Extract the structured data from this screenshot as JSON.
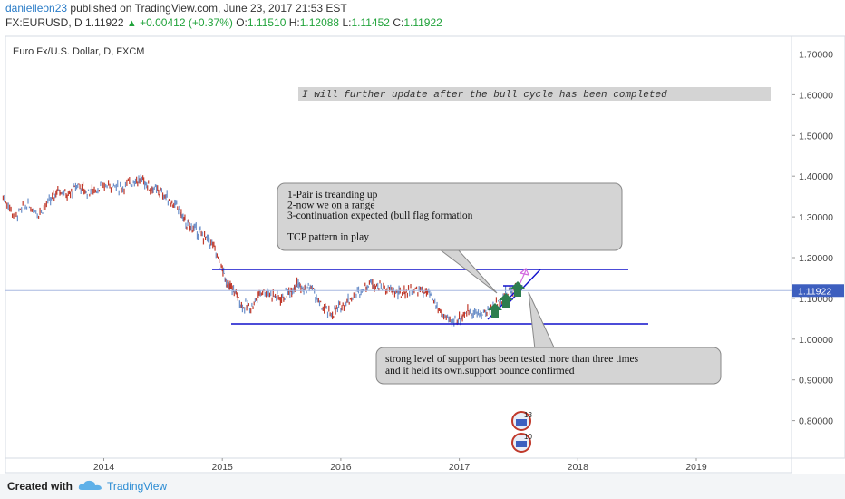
{
  "header": {
    "user": "danielleon23",
    "published": " published on TradingView.com, June 23, 2017 21:53 EST",
    "symbol": "FX:EURUSD, D",
    "last": "1.11922",
    "up_glyph": "▲",
    "change": "+0.00412 (+0.37%)",
    "o_label": "O:",
    "o_val": "1.11510",
    "h_label": "H:",
    "h_val": "1.12088",
    "l_label": "L:",
    "l_val": "1.11452",
    "c_label": "C:",
    "c_val": "1.11922"
  },
  "footer": {
    "created": "Created with",
    "brand": "TradingView",
    "logo_icon": "tradingview-cloud-icon"
  },
  "chart_data": {
    "type": "line",
    "title": "Euro Fx/U.S. Dollar, D, FXCM",
    "ylim": [
      0.7,
      1.75
    ],
    "y_ticks": [
      "1.70000",
      "1.60000",
      "1.50000",
      "1.40000",
      "1.30000",
      "1.20000",
      "1.10000",
      "1.00000",
      "0.90000",
      "0.80000"
    ],
    "y_tick_values": [
      1.7,
      1.6,
      1.5,
      1.4,
      1.3,
      1.2,
      1.1,
      1.0,
      0.9,
      0.8
    ],
    "x_ticks": [
      "2014",
      "2015",
      "2016",
      "2017",
      "2018",
      "2019"
    ],
    "x_tick_values": [
      2014,
      2015,
      2016,
      2017,
      2018,
      2019
    ],
    "xlim": [
      2013.15,
      2019.75
    ],
    "last_price": 1.11922,
    "last_price_label": "1.11922",
    "colors": {
      "up": "#6b8fc9",
      "down": "#c0392b",
      "trendline": "#1111cc",
      "price_line": "#a8b8e0",
      "arrow": "#2e7d4f",
      "label_bg": "#3d5fbf"
    },
    "series": [
      {
        "points": [
          [
            2013.15,
            1.35
          ],
          [
            2013.25,
            1.3
          ],
          [
            2013.35,
            1.33
          ],
          [
            2013.45,
            1.31
          ],
          [
            2013.55,
            1.34
          ],
          [
            2013.62,
            1.37
          ],
          [
            2013.7,
            1.35
          ],
          [
            2013.78,
            1.38
          ],
          [
            2013.86,
            1.36
          ],
          [
            2013.95,
            1.37
          ],
          [
            2014.05,
            1.38
          ],
          [
            2014.15,
            1.37
          ],
          [
            2014.25,
            1.39
          ],
          [
            2014.33,
            1.39
          ],
          [
            2014.4,
            1.37
          ],
          [
            2014.48,
            1.36
          ],
          [
            2014.56,
            1.34
          ],
          [
            2014.63,
            1.32
          ],
          [
            2014.7,
            1.28
          ],
          [
            2014.77,
            1.27
          ],
          [
            2014.85,
            1.25
          ],
          [
            2014.92,
            1.23
          ],
          [
            2015.0,
            1.17
          ],
          [
            2015.05,
            1.13
          ],
          [
            2015.1,
            1.12
          ],
          [
            2015.17,
            1.08
          ],
          [
            2015.25,
            1.08
          ],
          [
            2015.33,
            1.12
          ],
          [
            2015.42,
            1.11
          ],
          [
            2015.5,
            1.1
          ],
          [
            2015.58,
            1.12
          ],
          [
            2015.63,
            1.14
          ],
          [
            2015.68,
            1.12
          ],
          [
            2015.75,
            1.13
          ],
          [
            2015.83,
            1.08
          ],
          [
            2015.92,
            1.06
          ],
          [
            2016.0,
            1.08
          ],
          [
            2016.08,
            1.1
          ],
          [
            2016.17,
            1.12
          ],
          [
            2016.25,
            1.14
          ],
          [
            2016.33,
            1.13
          ],
          [
            2016.42,
            1.12
          ],
          [
            2016.5,
            1.11
          ],
          [
            2016.58,
            1.12
          ],
          [
            2016.67,
            1.12
          ],
          [
            2016.75,
            1.11
          ],
          [
            2016.83,
            1.07
          ],
          [
            2016.92,
            1.04
          ],
          [
            2017.0,
            1.05
          ],
          [
            2017.08,
            1.07
          ],
          [
            2017.17,
            1.06
          ],
          [
            2017.25,
            1.07
          ],
          [
            2017.33,
            1.09
          ],
          [
            2017.42,
            1.12
          ],
          [
            2017.48,
            1.12
          ]
        ]
      }
    ],
    "annotations": [
      {
        "text_lines": [
          "1-Pair is treanding up",
          "2-now we on a range",
          "3-continuation expected (bull flag formation",
          "",
          "TCP pattern in play"
        ]
      },
      {
        "text_lines": [
          "strong level of support has been tested more than three times",
          "and it held its own.support bounce confirmed"
        ]
      },
      {
        "text_lines": [
          "I will further update after the bull cycle has been completed"
        ]
      }
    ],
    "event_badges": [
      "13",
      "10"
    ]
  }
}
